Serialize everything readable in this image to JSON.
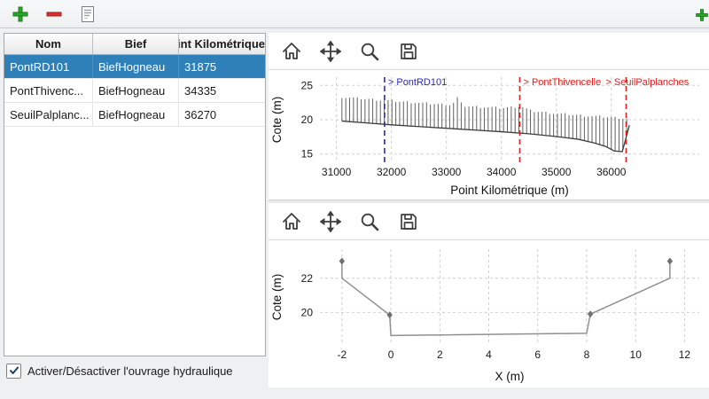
{
  "main_toolbar": {
    "buttons": [
      "add",
      "remove",
      "edit-form"
    ],
    "corner_button": "add"
  },
  "table": {
    "columns": [
      "Nom",
      "Bief",
      "Point Kilométrique"
    ],
    "rows": [
      {
        "nom": "PontRD101",
        "bief": "BiefHogneau",
        "pk": "31875",
        "selected": true
      },
      {
        "nom": "PontThivenc...",
        "bief": "BiefHogneau",
        "pk": "34335",
        "selected": false
      },
      {
        "nom": "SeuilPalplanc...",
        "bief": "BiefHogneau",
        "pk": "36270",
        "selected": false
      }
    ]
  },
  "checkbox": {
    "label": "Activer/Désactiver l'ouvrage hydraulique",
    "checked": true
  },
  "mpl_toolbar": {
    "buttons": [
      "home",
      "pan",
      "zoom",
      "save"
    ]
  },
  "colors": {
    "selection": "#2f7fb8",
    "add_green": "#27a827",
    "remove_red": "#d83030",
    "annotation_blue": "#2525d8",
    "annotation_red": "#e02020",
    "grid": "#cfcfcf",
    "profile_line": "#606060",
    "bed_line": "#3c3c3c",
    "section_line": "#909090"
  },
  "chart_data": [
    {
      "type": "line",
      "name": "profil-longitudinal",
      "xlabel": "Point Kilométrique (m)",
      "ylabel": "Cote (m)",
      "xlim": [
        30700,
        37600
      ],
      "ylim": [
        13.8,
        26.2
      ],
      "xticks": [
        31000,
        32000,
        33000,
        34000,
        35000,
        36000
      ],
      "yticks": [
        15,
        20,
        25
      ],
      "grid": true,
      "comb": {
        "start": 31100,
        "end": 36330,
        "step": 70,
        "bed": [
          [
            31100,
            19.8
          ],
          [
            31600,
            19.5
          ],
          [
            32000,
            19.25
          ],
          [
            32500,
            19.0
          ],
          [
            33000,
            18.75
          ],
          [
            33500,
            18.5
          ],
          [
            34000,
            18.25
          ],
          [
            34500,
            17.95
          ],
          [
            35000,
            17.55
          ],
          [
            35400,
            17.15
          ],
          [
            35700,
            16.6
          ],
          [
            35900,
            16.1
          ],
          [
            36050,
            15.45
          ],
          [
            36200,
            15.35
          ],
          [
            36330,
            19.2
          ]
        ],
        "top": [
          [
            31100,
            23.3
          ],
          [
            31500,
            23.05
          ],
          [
            32000,
            22.75
          ],
          [
            32500,
            22.45
          ],
          [
            33100,
            22.15
          ],
          [
            33200,
            23.2
          ],
          [
            33300,
            22.0
          ],
          [
            34000,
            21.7
          ],
          [
            34350,
            21.95
          ],
          [
            34550,
            21.25
          ],
          [
            35000,
            20.9
          ],
          [
            35500,
            20.6
          ],
          [
            36000,
            20.35
          ],
          [
            36330,
            20.15
          ]
        ]
      },
      "annotations": [
        {
          "x": 31875,
          "label": "> PontRD101",
          "color": "#2525d8",
          "style": "dashed"
        },
        {
          "x": 34335,
          "label": "> PontThivencelle",
          "color": "#e02020",
          "style": "dashed"
        },
        {
          "x": 36270,
          "label": "> SeuilPalplanches",
          "color": "#e02020",
          "style": "dashed"
        }
      ]
    },
    {
      "type": "line",
      "name": "profil-en-travers",
      "xlabel": "X (m)",
      "ylabel": "Cote (m)",
      "xlim": [
        -2.9,
        12.6
      ],
      "ylim": [
        18.1,
        23.7
      ],
      "xticks": [
        -2,
        0,
        2,
        4,
        6,
        8,
        10,
        12
      ],
      "yticks": [
        20,
        22
      ],
      "grid": true,
      "series": [
        {
          "name": "profil",
          "color": "#909090",
          "points": [
            [
              -2,
              23
            ],
            [
              -2,
              22
            ],
            [
              -0.05,
              19.85
            ],
            [
              0,
              18.65
            ],
            [
              8,
              18.78
            ],
            [
              8.15,
              19.9
            ],
            [
              11.4,
              22
            ],
            [
              11.4,
              23
            ]
          ],
          "markers": [
            [
              -2,
              23
            ],
            [
              -0.05,
              19.85
            ],
            [
              8.15,
              19.9
            ],
            [
              11.4,
              23
            ]
          ]
        }
      ]
    }
  ]
}
